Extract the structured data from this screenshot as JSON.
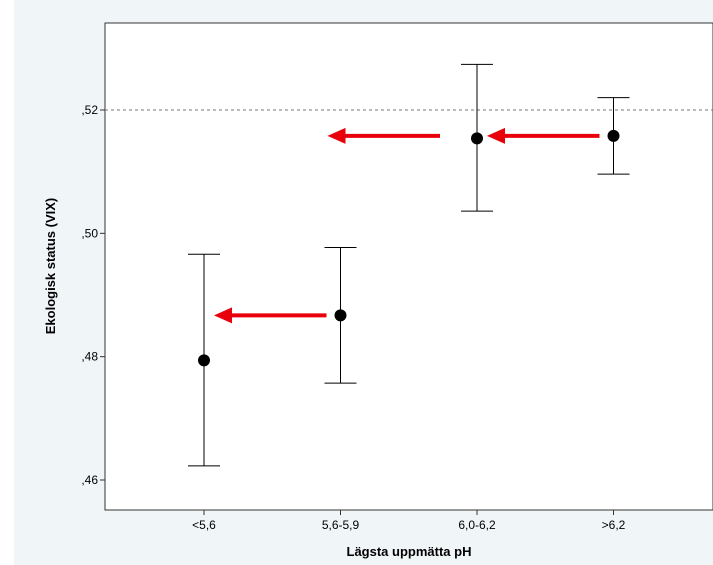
{
  "chart_data": {
    "type": "scatter",
    "subtype": "error-bar",
    "title": "",
    "xlabel": "Lägsta uppmätta pH",
    "ylabel": "Ekologisk status (VIX)",
    "categories": [
      "<5,6",
      "5,6-5,9",
      "6,0-6,2",
      ">6,2"
    ],
    "ylim": [
      0.455,
      0.533
    ],
    "y_ticks": [
      {
        "value": 0.46,
        "label": ",46"
      },
      {
        "value": 0.48,
        "label": ",48"
      },
      {
        "value": 0.5,
        "label": ",50"
      },
      {
        "value": 0.52,
        "label": ",52"
      }
    ],
    "series": [
      {
        "means": [
          0.4794,
          0.4867,
          0.5154,
          0.5158
        ],
        "lower": [
          0.4623,
          0.4757,
          0.5036,
          0.5096
        ],
        "upper": [
          0.4966,
          0.4977,
          0.5274,
          0.522
        ]
      }
    ],
    "reference_line": {
      "value": 0.52,
      "style": "dashed"
    },
    "arrows": [
      {
        "from": "5,6-5,9",
        "to": "<5,6",
        "y": 0.4867
      },
      {
        "from": ">6,2",
        "to": "6,0-6,2",
        "y": 0.5158
      },
      {
        "from": "6,0-6,2",
        "to": "5,6-5,9",
        "y": 0.5158
      }
    ],
    "grid": false,
    "colors": {
      "marker": "#000000",
      "arrow": "#e8000b",
      "background": "#f0f5f8",
      "plot": "#ffffff"
    }
  }
}
